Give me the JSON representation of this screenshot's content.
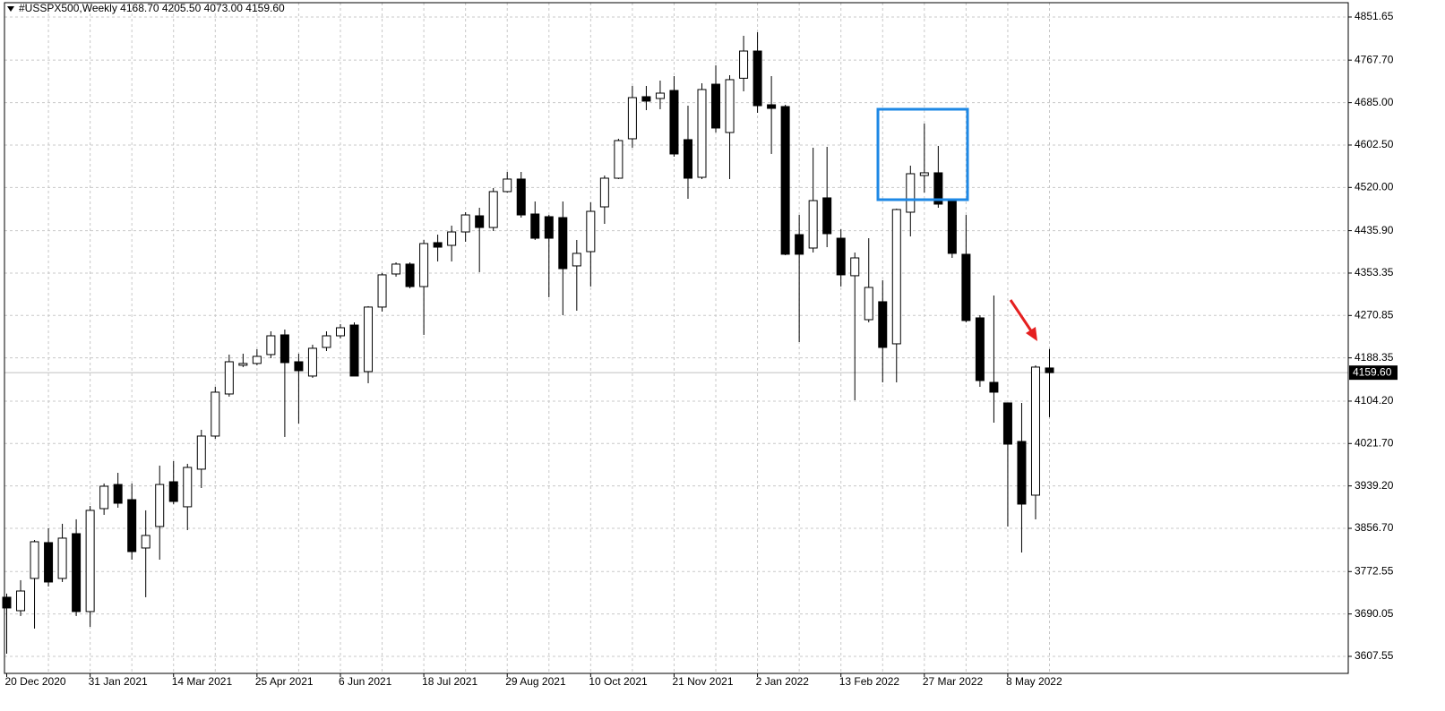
{
  "chart_data": {
    "type": "candlestick",
    "title": "#USSPX500,Weekly 4168.70 4205.50 4073.00 4159.60",
    "categories": [
      "20 Dec 2020",
      null,
      null,
      null,
      null,
      null,
      "31 Jan 2021",
      null,
      null,
      null,
      null,
      null,
      "14 Mar 2021",
      null,
      null,
      null,
      null,
      null,
      "25 Apr 2021",
      null,
      null,
      null,
      null,
      null,
      "6 Jun 2021",
      null,
      null,
      null,
      null,
      null,
      "18 Jul 2021",
      null,
      null,
      null,
      null,
      null,
      "29 Aug 2021",
      null,
      null,
      null,
      null,
      null,
      "10 Oct 2021",
      null,
      null,
      null,
      null,
      null,
      "21 Nov 2021",
      null,
      null,
      null,
      null,
      null,
      "2 Jan 2022",
      null,
      null,
      null,
      null,
      null,
      "13 Feb 2022",
      null,
      null,
      null,
      null,
      null,
      "27 Mar 2022",
      null,
      null,
      null,
      null,
      null,
      "8 May 2022",
      null,
      null,
      null
    ],
    "open": [
      3722.6,
      3696.4,
      3759.2,
      3828.9,
      3759.2,
      3846.3,
      3694.7,
      3895.0,
      3942.0,
      3912.5,
      3818.4,
      3860.2,
      3947.3,
      3898.6,
      3971.8,
      4036.2,
      4118.1,
      4174.0,
      4177.5,
      4194.8,
      4233.1,
      4180.8,
      4153.0,
      4208.7,
      4231.3,
      4252.2,
      4161.7,
      4287.2,
      4351.6,
      4370.8,
      4327.1,
      4412.6,
      4407.3,
      4433.4,
      4464.8,
      4442.1,
      4511.9,
      4536.3,
      4468.3,
      4463.1,
      4461.3,
      4367.3,
      4395.1,
      4482.2,
      4538.0,
      4614.7,
      4696.6,
      4693.1,
      4708.7,
      4613.0,
      4539.7,
      4720.9,
      4626.9,
      4732.5,
      4785.4,
      4680.9,
      4677.4,
      4428.2,
      4402.1,
      4499.7,
      4421.2,
      4348.2,
      4262.7,
      4297.6,
      4215.7,
      4471.8,
      4543.2,
      4548.5,
      4492.7,
      4389.9,
      4266.2,
      4140.7,
      4100.7,
      4025.7,
      3921.2,
      4168.7
    ],
    "high": [
      3729.6,
      3755.7,
      3834.0,
      3856.7,
      3865.5,
      3874.2,
      3900.3,
      3943.9,
      3964.7,
      3943.9,
      3891.6,
      3978.7,
      3987.4,
      3982.2,
      4048.4,
      4132.0,
      4194.7,
      4196.5,
      4205.2,
      4240.0,
      4243.5,
      4196.5,
      4214.0,
      4240.0,
      4254.0,
      4257.5,
      4288.9,
      4353.4,
      4374.2,
      4374.2,
      4417.8,
      4428.2,
      4445.7,
      4471.8,
      4480.5,
      4518.8,
      4550.2,
      4550.2,
      4492.7,
      4466.5,
      4492.7,
      4417.8,
      4491.0,
      4543.2,
      4614.7,
      4717.5,
      4717.5,
      4727.9,
      4736.6,
      4679.1,
      4722.7,
      4757.6,
      4738.4,
      4815.1,
      4822.0,
      4736.6,
      4680.9,
      4466.5,
      4597.3,
      4599.0,
      4438.6,
      4393.4,
      4421.2,
      4339.4,
      4478.8,
      4562.4,
      4644.3,
      4600.8,
      4497.9,
      4466.5,
      4271.4,
      4309.8,
      4100.7,
      4100.7,
      4173.9,
      4205.5
    ],
    "low": [
      3612.8,
      3686.0,
      3661.6,
      3743.5,
      3752.2,
      3686.0,
      3665.0,
      3882.9,
      3896.8,
      3795.7,
      3722.6,
      3795.7,
      3903.8,
      3853.2,
      3935.1,
      4031.0,
      4112.9,
      4170.4,
      4174.0,
      4187.8,
      4034.5,
      4060.6,
      4149.5,
      4201.7,
      4226.1,
      4153.0,
      4139.0,
      4278.4,
      4346.4,
      4323.7,
      4233.1,
      4376.0,
      4376.0,
      4414.3,
      4355.1,
      4435.2,
      4510.1,
      4461.3,
      4417.8,
      4306.3,
      4271.4,
      4280.1,
      4327.1,
      4449.1,
      4536.3,
      4597.3,
      4670.4,
      4672.2,
      4579.8,
      4497.9,
      4536.3,
      4626.9,
      4536.3,
      4707.0,
      4665.2,
      4585.1,
      4388.2,
      4219.1,
      4393.4,
      4403.8,
      4327.1,
      4105.9,
      4257.5,
      4140.7,
      4140.7,
      4424.8,
      4510.1,
      4480.5,
      4382.9,
      4257.5,
      4132.0,
      4062.3,
      3860.2,
      3809.7,
      3874.2,
      4073.0
    ],
    "close": [
      3701.7,
      3734.7,
      3830.6,
      3752.2,
      3837.6,
      3694.7,
      3891.6,
      3938.6,
      3905.5,
      3811.4,
      3842.8,
      3942.0,
      3909.0,
      3975.2,
      4036.2,
      4121.6,
      4180.8,
      4177.5,
      4191.3,
      4231.3,
      4179.1,
      4163.4,
      4207.0,
      4231.3,
      4247.0,
      4153.0,
      4287.2,
      4349.9,
      4370.8,
      4327.1,
      4410.8,
      4403.8,
      4433.4,
      4466.5,
      4442.1,
      4511.9,
      4536.3,
      4466.5,
      4421.2,
      4421.2,
      4362.0,
      4391.7,
      4473.5,
      4538.0,
      4611.2,
      4694.8,
      4687.9,
      4703.5,
      4585.1,
      4538.0,
      4710.5,
      4635.6,
      4729.7,
      4785.4,
      4679.1,
      4673.9,
      4390.0,
      4390.0,
      4494.4,
      4430.0,
      4349.9,
      4382.9,
      4325.4,
      4208.7,
      4477.0,
      4546.7,
      4548.5,
      4487.5,
      4391.7,
      4261.0,
      4144.2,
      4121.6,
      4020.5,
      3903.8,
      4170.4,
      4159.6
    ],
    "up_color": "#ffffff",
    "down_color": "#000000",
    "ylim": [
      3574.4,
      4879.5
    ],
    "yticks": [
      4851.65,
      {
        "value": 4767.7,
        "label": "4767.70"
      },
      {
        "value": 4685,
        "label": "4685.00"
      },
      {
        "value": 4602.5,
        "label": "4602.50"
      },
      {
        "value": 4520,
        "label": "4520.00"
      },
      {
        "value": 4435.9,
        "label": "4435.90"
      },
      4353.35,
      4270.85,
      4188.35,
      {
        "value": 4104.2,
        "label": "4104.20"
      },
      {
        "value": 4021.7,
        "label": "4021.70"
      },
      {
        "value": 3939.2,
        "label": "3939.20"
      },
      {
        "value": 3856.7,
        "label": "3856.70"
      },
      3772.55,
      3690.05,
      3607.55
    ],
    "last_price": {
      "value": 4159.6,
      "label": "4159.60"
    },
    "grid": true
  }
}
